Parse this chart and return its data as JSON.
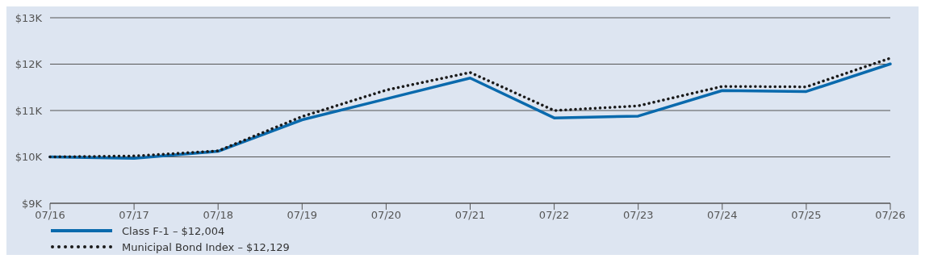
{
  "chart_data": {
    "type": "line",
    "categories": [
      "07/16",
      "07/17",
      "07/18",
      "07/19",
      "07/20",
      "07/21",
      "07/22",
      "07/23",
      "07/24",
      "07/25",
      "07/26"
    ],
    "series": [
      {
        "name": "Class F-1 – $12,004",
        "color": "#0a6aad",
        "line_style": "solid",
        "values": [
          10000,
          9970,
          10120,
          10800,
          11250,
          11700,
          10840,
          10880,
          11430,
          11410,
          12004
        ]
      },
      {
        "name": "Municipal Bond Index – $12,129",
        "color": "#1a1a1a",
        "line_style": "dotted",
        "values": [
          10000,
          10020,
          10130,
          10870,
          11440,
          11820,
          11000,
          11100,
          11520,
          11510,
          12129
        ]
      }
    ],
    "ylim": [
      9000,
      13000
    ],
    "yticks": [
      {
        "value": 9000,
        "label": "$9K"
      },
      {
        "value": 10000,
        "label": "$10K"
      },
      {
        "value": 11000,
        "label": "$11K"
      },
      {
        "value": 12000,
        "label": "$12K"
      },
      {
        "value": 13000,
        "label": "$13K"
      }
    ],
    "grid": "y",
    "legend": "bottom left",
    "marker": "none"
  }
}
